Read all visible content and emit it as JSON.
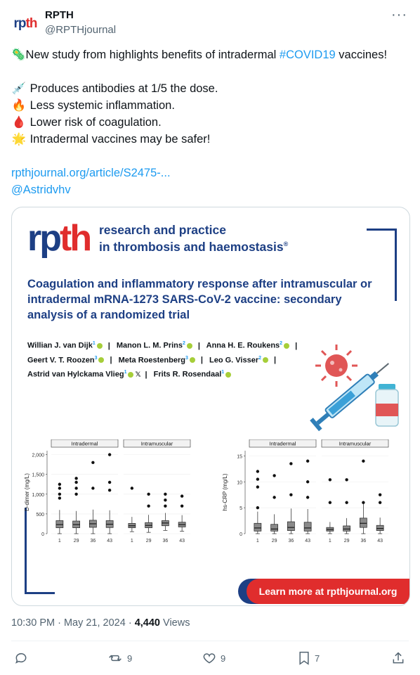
{
  "author": {
    "avatar_text_a": "rp",
    "avatar_text_b": "th",
    "display_name": "RPTH",
    "handle": "@RPTHjournal"
  },
  "tweet": {
    "line1_emoji": "🦠",
    "line1_text": "New study from highlights benefits of intradermal ",
    "hashtag": "#COVID19",
    "line1_tail": " vaccines!",
    "bullets": [
      {
        "emoji": "💉",
        "text": "Produces antibodies at 1/5 the dose."
      },
      {
        "emoji": "🔥",
        "text": "Less systemic inflammation."
      },
      {
        "emoji": "🩸",
        "text": "Lower risk of coagulation."
      },
      {
        "emoji": "🌟",
        "text": "Intradermal vaccines may be safer!"
      }
    ],
    "link": "rpthjournal.org/article/S2475-...",
    "mention": "@Astridvhv"
  },
  "card": {
    "logo_a": "rp",
    "logo_b": "th",
    "journal_line1": "research and practice",
    "journal_line2": "in thrombosis and haemostasis",
    "journal_mark": "®",
    "title": "Coagulation and inflammatory response after intramuscular or intradermal mRNA-1273 SARS-CoV-2 vaccine: secondary analysis of a randomized trial",
    "authors": [
      {
        "name": "Willian J. van Dijk",
        "sup": "1"
      },
      {
        "name": "Manon L. M. Prins",
        "sup": "2"
      },
      {
        "name": "Anna H. E. Roukens",
        "sup": "2"
      },
      {
        "name": "Geert V. T. Roozen",
        "sup": "3"
      },
      {
        "name": "Meta Roestenberg",
        "sup": "3"
      },
      {
        "name": "Leo G. Visser",
        "sup": "2"
      },
      {
        "name": "Astrid van Hylckama Vlieg",
        "sup": "1"
      },
      {
        "name": "Frits R. Rosendaal",
        "sup": "1"
      }
    ],
    "x_glyph": "𝕏",
    "cta": "Learn more at rpthjournal.org"
  },
  "chart_data": [
    {
      "type": "box",
      "ylabel": "D-dimer (mg/L)",
      "yticks": [
        "0",
        "500",
        "1,000",
        "1,500",
        "2,000"
      ],
      "ylim": [
        0,
        2100
      ],
      "panels": [
        {
          "name": "Intradermal",
          "categories": [
            "1",
            "29",
            "36",
            "43"
          ],
          "medians": [
            230,
            230,
            250,
            240
          ],
          "q1": [
            150,
            150,
            160,
            155
          ],
          "q3": [
            330,
            320,
            340,
            330
          ],
          "outliers": [
            [
              900,
              1000,
              1150,
              1250
            ],
            [
              1000,
              1150,
              1300,
              1400
            ],
            [
              1150,
              1800
            ],
            [
              1100,
              1300,
              2000
            ]
          ]
        },
        {
          "name": "Intramuscular",
          "categories": [
            "1",
            "29",
            "36",
            "43"
          ],
          "medians": [
            200,
            210,
            270,
            230
          ],
          "q1": [
            150,
            150,
            200,
            170
          ],
          "q3": [
            260,
            280,
            330,
            290
          ],
          "outliers": [
            [
              1150
            ],
            [
              700,
              1000
            ],
            [
              700,
              850,
              1000
            ],
            [
              700,
              950
            ]
          ]
        }
      ]
    },
    {
      "type": "box",
      "ylabel": "hs-CRP (mg/L)",
      "yticks": [
        "0",
        "5",
        "10",
        "15"
      ],
      "ylim": [
        0,
        16
      ],
      "panels": [
        {
          "name": "Intradermal",
          "categories": [
            "1",
            "29",
            "36",
            "43"
          ],
          "medians": [
            1.1,
            0.9,
            1.2,
            1.1
          ],
          "q1": [
            0.5,
            0.5,
            0.6,
            0.5
          ],
          "q3": [
            2.0,
            1.8,
            2.3,
            2.2
          ],
          "outliers": [
            [
              5,
              9,
              10.5,
              12
            ],
            [
              7,
              11.2
            ],
            [
              7.5,
              13.5
            ],
            [
              7,
              10,
              14
            ]
          ]
        },
        {
          "name": "Intramuscular",
          "categories": [
            "1",
            "29",
            "36",
            "43"
          ],
          "medians": [
            0.8,
            0.9,
            2.0,
            1.0
          ],
          "q1": [
            0.5,
            0.5,
            1.2,
            0.6
          ],
          "q3": [
            1.2,
            1.5,
            3.0,
            1.6
          ],
          "outliers": [
            [
              6,
              10.4
            ],
            [
              6,
              10.4
            ],
            [
              6,
              14
            ],
            [
              6,
              7.5
            ]
          ]
        }
      ]
    }
  ],
  "footer": {
    "time": "10:30 PM · May 21, 2024 · ",
    "views": "4,440",
    "views_label": " Views",
    "replies": "",
    "retweets": "9",
    "likes": "9",
    "bookmarks": "7"
  }
}
